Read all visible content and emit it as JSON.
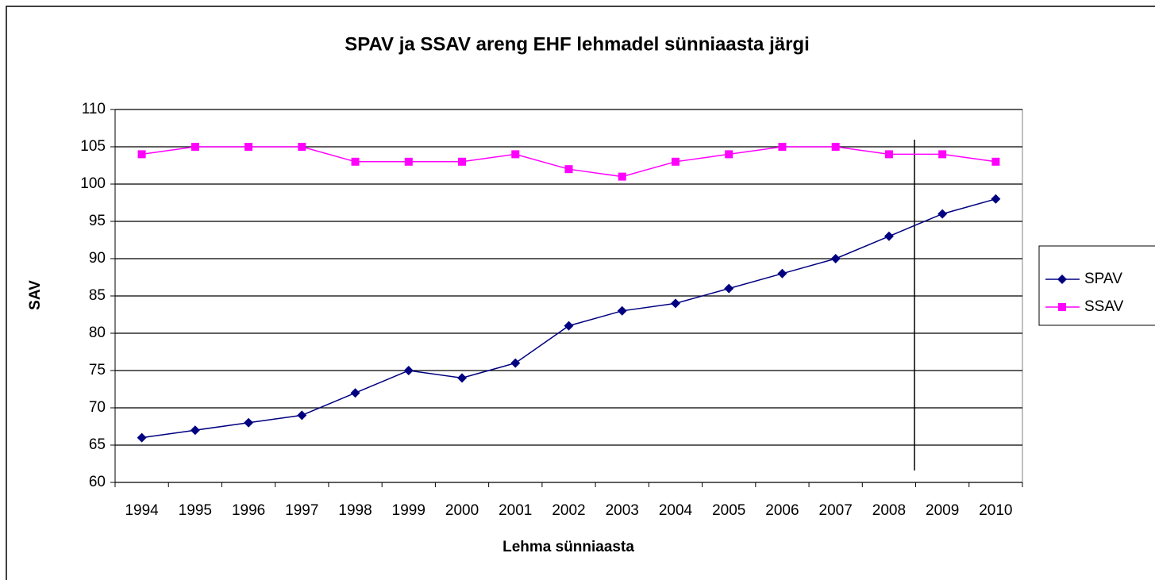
{
  "chart_data": {
    "type": "line",
    "title": "SPAV ja SSAV areng EHF lehmadel sünniaasta järgi",
    "x_label": "Lehma sünniaasta",
    "y_label": "SAV",
    "categories": [
      "1994",
      "1995",
      "1996",
      "1997",
      "1998",
      "1999",
      "2000",
      "2001",
      "2002",
      "2003",
      "2004",
      "2005",
      "2006",
      "2007",
      "2008",
      "2009",
      "2010"
    ],
    "series": [
      {
        "name": "SPAV",
        "color": "#000080",
        "marker": "diamond",
        "values": [
          66,
          67,
          68,
          69,
          72,
          75,
          74,
          76,
          81,
          83,
          84,
          86,
          88,
          90,
          93,
          96,
          98
        ]
      },
      {
        "name": "SSAV",
        "color": "#ff00ff",
        "marker": "square",
        "values": [
          104,
          105,
          105,
          105,
          103,
          103,
          103,
          104,
          102,
          101,
          103,
          104,
          105,
          105,
          104,
          104,
          103
        ]
      }
    ],
    "ylim": [
      60,
      110
    ],
    "yticks": [
      60,
      65,
      70,
      75,
      80,
      85,
      90,
      95,
      100,
      105,
      110
    ],
    "grid": true,
    "legend": "right"
  }
}
